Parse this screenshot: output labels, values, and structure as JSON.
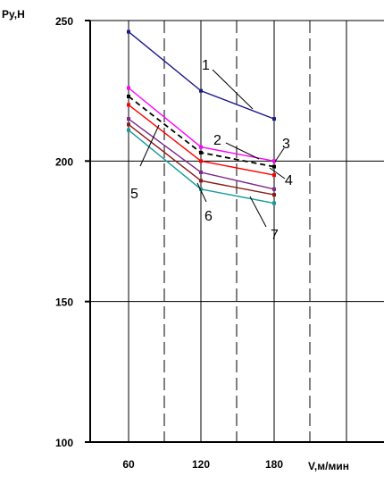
{
  "chart_data": {
    "type": "line",
    "title": "",
    "ylabel": "Py,H",
    "xlabel": "V,м/мин",
    "ylim": [
      100,
      250
    ],
    "yticks": [
      100,
      150,
      200,
      250
    ],
    "xticks": [
      60,
      120,
      180
    ],
    "grid": true,
    "x": [
      60,
      120,
      180
    ],
    "series": [
      {
        "name": "1",
        "values": [
          246,
          225,
          215
        ],
        "color": "#1a1a8c",
        "dash": false,
        "markers": true
      },
      {
        "name": "2",
        "values": [
          226,
          205,
          200
        ],
        "color": "#ff00ff",
        "dash": false,
        "markers": false
      },
      {
        "name": "3",
        "values": [
          223,
          203,
          198
        ],
        "color": "#000000",
        "dash": true,
        "markers": false
      },
      {
        "name": "4",
        "values": [
          220,
          200,
          195
        ],
        "color": "#ff0000",
        "dash": false,
        "markers": false
      },
      {
        "name": "5",
        "values": [
          215,
          196,
          190
        ],
        "color": "#7a2a8c",
        "dash": false,
        "markers": false
      },
      {
        "name": "6",
        "values": [
          213,
          193,
          188
        ],
        "color": "#8b1a1a",
        "dash": false,
        "markers": false
      },
      {
        "name": "7",
        "values": [
          211,
          190,
          185
        ],
        "color": "#1a9a9a",
        "dash": false,
        "markers": false
      }
    ]
  }
}
